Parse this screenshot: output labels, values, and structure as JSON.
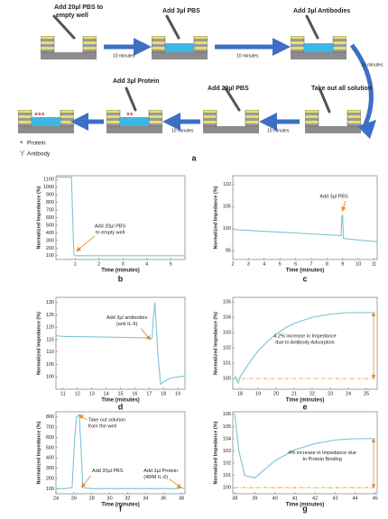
{
  "diagram": {
    "steps": [
      {
        "label": [
          "Add 20µl PBS to",
          "empty well"
        ]
      },
      {
        "label": [
          "Add 3µl PBS"
        ]
      },
      {
        "label": [
          "Add 3µl Antibodies"
        ]
      },
      {
        "label": [
          "Take out all solution"
        ]
      },
      {
        "label": [
          "Add 20µl PBS"
        ]
      },
      {
        "label": [
          "Add 3µl Protein"
        ]
      }
    ],
    "intervals": [
      "10 minutes",
      "10 minutes",
      "10 minutes",
      "10 minutes",
      "10 minutes"
    ],
    "legend": [
      "Protein",
      "Antibody"
    ],
    "panel_label": "a"
  },
  "chart_data": [
    {
      "type": "line",
      "panel_label": "b",
      "x_label": "Time (minutes)",
      "y_label": "Normalized Impedance (%)",
      "color": "#7cc3d3",
      "x": [
        0.2,
        0.85,
        0.9,
        0.95,
        1.0,
        1.5,
        2,
        3,
        4,
        5,
        5.6
      ],
      "values": [
        1130,
        1130,
        600,
        120,
        100,
        100,
        100,
        100,
        100,
        100,
        100
      ],
      "xlim": [
        0.2,
        5.6
      ],
      "ylim": [
        50,
        1150
      ],
      "xticks": [
        1,
        2,
        3,
        4,
        5
      ],
      "yticks": [
        100,
        200,
        300,
        400,
        500,
        600,
        700,
        800,
        900,
        1000,
        1100
      ],
      "annotations": [
        {
          "text": [
            "Add 20µl PBS",
            "to empty well"
          ]
        }
      ]
    },
    {
      "type": "line",
      "panel_label": "c",
      "x_label": "Time (minutes)",
      "y_label": "Normalized Impedance (%)",
      "color": "#7cc3d3",
      "x": [
        2,
        3,
        4,
        5,
        6,
        7,
        8,
        8.9,
        8.95,
        9.0,
        9.05,
        9.5,
        10,
        11,
        11.2
      ],
      "values": [
        99.8,
        99.6,
        99.4,
        99.2,
        99,
        98.8,
        98.6,
        98.4,
        103,
        103,
        97.8,
        97.6,
        97.4,
        97.1,
        97
      ],
      "xlim": [
        2,
        11.2
      ],
      "ylim": [
        93,
        112
      ],
      "xticks": [
        2,
        3,
        4,
        5,
        6,
        7,
        8,
        9,
        10,
        11
      ],
      "yticks": [
        95,
        100,
        105,
        110
      ],
      "annotations": [
        {
          "text": [
            "Add 3µl PBS"
          ]
        }
      ]
    },
    {
      "type": "line",
      "panel_label": "d",
      "x_label": "Time (minutes)",
      "y_label": "Normalized Impedance (%)",
      "color": "#7cc3d3",
      "x": [
        10.5,
        11,
        12,
        13,
        14,
        15,
        16,
        17,
        17.2,
        17.3,
        17.4,
        17.6,
        17.8,
        18,
        18.5,
        19,
        19.5
      ],
      "values": [
        116.5,
        116.3,
        116.2,
        116.1,
        116,
        115.9,
        115.8,
        115.6,
        115.5,
        124,
        130,
        110,
        97,
        98,
        99.5,
        100,
        100.3
      ],
      "xlim": [
        10.5,
        19.5
      ],
      "ylim": [
        95,
        132
      ],
      "xticks": [
        11,
        12,
        13,
        14,
        15,
        16,
        17,
        18,
        19
      ],
      "yticks": [
        100,
        105,
        110,
        115,
        120,
        125,
        130
      ],
      "annotations": [
        {
          "text": [
            "Add 3µl antibodies",
            "(anti IL-6)"
          ]
        }
      ]
    },
    {
      "type": "line",
      "panel_label": "e",
      "x_label": "Time (minutes)",
      "y_label": "Normalized Impedance (%)",
      "color": "#7cc3d3",
      "x": [
        17.7,
        17.9,
        18,
        18.5,
        19,
        19.5,
        20,
        20.5,
        21,
        21.5,
        22,
        23,
        24,
        25,
        25.5
      ],
      "values": [
        100.2,
        99.7,
        100.1,
        101,
        101.8,
        102.4,
        102.9,
        103.3,
        103.6,
        103.8,
        104,
        104.2,
        104.3,
        104.3,
        104.3
      ],
      "xlim": [
        17.6,
        25.6
      ],
      "ylim": [
        99.3,
        105.3
      ],
      "xticks": [
        18,
        19,
        20,
        21,
        22,
        23,
        24,
        25
      ],
      "yticks": [
        100,
        101,
        102,
        103,
        104,
        105
      ],
      "baseline": 100,
      "annotations": [
        {
          "text": [
            "4.2% increase in Impedance",
            "due to Antibody Adsorption"
          ]
        }
      ]
    },
    {
      "type": "line",
      "panel_label": "f",
      "x_label": "Time (minutes)",
      "y_label": "Normalized Impedance (%)",
      "color": "#7cc3d3",
      "x": [
        24,
        25,
        25.8,
        26.1,
        26.3,
        26.6,
        26.8,
        27,
        28,
        30,
        32,
        34,
        36,
        37.5,
        38,
        38.3
      ],
      "values": [
        100,
        100,
        110,
        600,
        800,
        820,
        500,
        110,
        100,
        100,
        100,
        100,
        100,
        100,
        110,
        100
      ],
      "xlim": [
        24,
        38.4
      ],
      "ylim": [
        50,
        850
      ],
      "xticks": [
        24,
        26,
        28,
        30,
        32,
        34,
        36,
        38
      ],
      "yticks": [
        100,
        200,
        300,
        400,
        500,
        600,
        700,
        800
      ],
      "annotations": [
        {
          "text": [
            "Take out solution",
            "from the well"
          ]
        },
        {
          "text": [
            "Add 20µl PBS"
          ]
        },
        {
          "text": [
            "Add 3µl Protein",
            "(45fM IL-6)"
          ]
        }
      ]
    },
    {
      "type": "line",
      "panel_label": "g",
      "x_label": "Time (minutes)",
      "y_label": "Normalized Impedance (%)",
      "color": "#7cc3d3",
      "x": [
        38,
        38.2,
        38.5,
        39,
        39.5,
        40,
        41,
        42,
        43,
        44,
        45
      ],
      "values": [
        106,
        103,
        101,
        100.8,
        101.5,
        102.2,
        103.1,
        103.6,
        103.9,
        104,
        104
      ],
      "xlim": [
        37.9,
        45.1
      ],
      "ylim": [
        99.5,
        106.2
      ],
      "xticks": [
        38,
        39,
        40,
        41,
        42,
        43,
        44,
        45
      ],
      "yticks": [
        100,
        101,
        102,
        103,
        104,
        105,
        106
      ],
      "baseline": 100,
      "annotations": [
        {
          "text": [
            "4% increase in Impedance due",
            "to Protein Binding"
          ]
        }
      ]
    }
  ]
}
